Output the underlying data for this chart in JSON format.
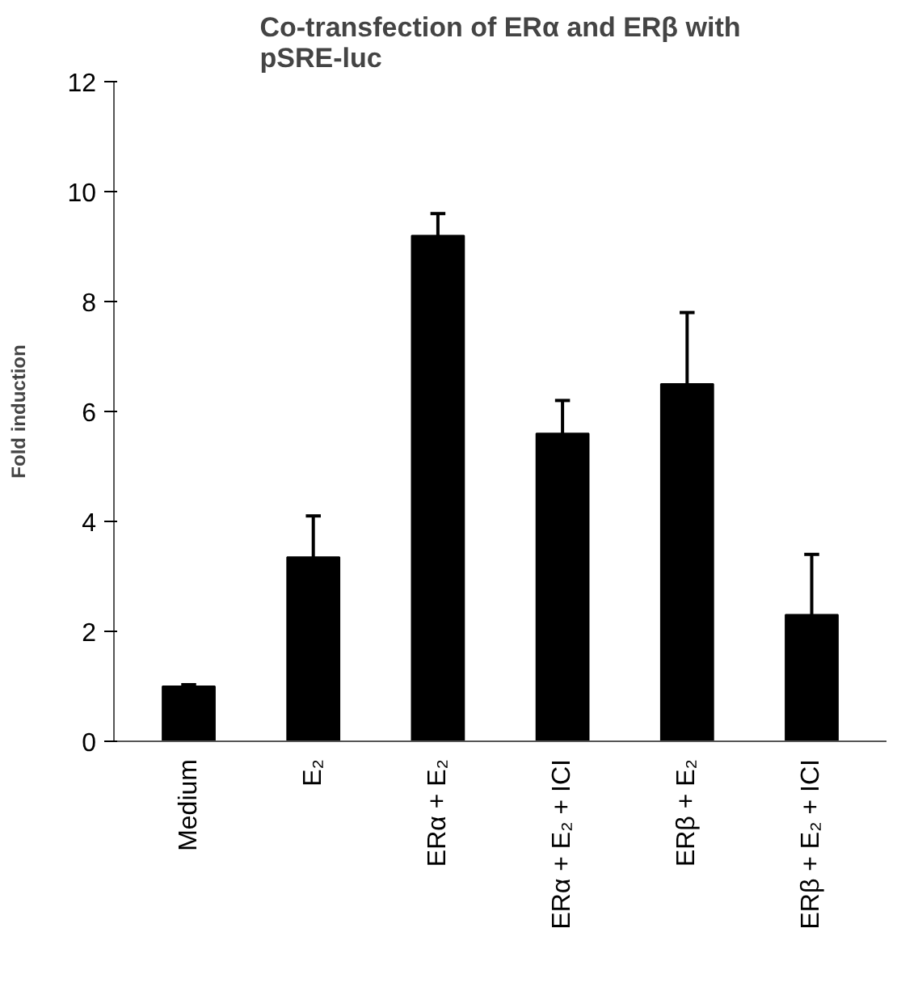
{
  "chart_data": {
    "type": "bar",
    "title": "Co-transfection of ERα and ERβ with\npSRE-luc",
    "ylabel": "Fold induction",
    "categories": [
      "Medium",
      "E₂",
      "ERα + E₂",
      "ERα + E₂ + ICI",
      "ERβ + E₂",
      "ERβ + E₂ + ICI"
    ],
    "values": [
      1.0,
      3.35,
      9.2,
      5.6,
      6.5,
      2.3
    ],
    "errors": [
      [
        1.0,
        1.03
      ],
      [
        3.35,
        4.1
      ],
      [
        9.2,
        9.6
      ],
      [
        5.6,
        6.2
      ],
      [
        6.5,
        7.8
      ],
      [
        2.3,
        3.4
      ]
    ],
    "color": "#000000",
    "ylim": [
      0,
      12
    ],
    "yticks": [
      0,
      2,
      4,
      6,
      8,
      10,
      12
    ],
    "grid": false
  }
}
